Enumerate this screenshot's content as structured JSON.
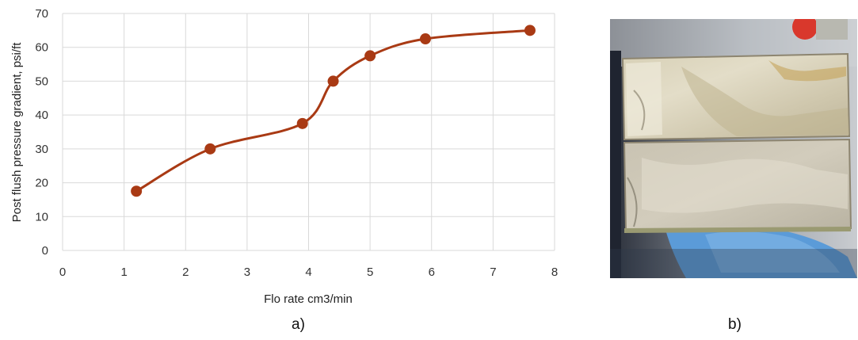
{
  "chart_data": {
    "type": "line",
    "xlabel": "Flo rate cm3/min",
    "ylabel": "Post flush pressure gradient, psi/ft",
    "xlim": [
      0,
      8
    ],
    "ylim": [
      0,
      70
    ],
    "x_ticks": [
      "0",
      "1",
      "2",
      "3",
      "4",
      "5",
      "6",
      "7",
      "8"
    ],
    "y_ticks": [
      "0",
      "10",
      "20",
      "30",
      "40",
      "50",
      "60",
      "70"
    ],
    "grid": true,
    "smoothed": true,
    "series": [
      {
        "color": "#a93a14",
        "points": [
          {
            "x": 1.2,
            "y": 17.5
          },
          {
            "x": 2.4,
            "y": 30
          },
          {
            "x": 3.9,
            "y": 37.5
          },
          {
            "x": 4.4,
            "y": 50
          },
          {
            "x": 5.0,
            "y": 57.5
          },
          {
            "x": 5.9,
            "y": 62.5
          },
          {
            "x": 7.6,
            "y": 65
          }
        ]
      }
    ]
  },
  "captions": {
    "a": "a)",
    "b": "b)"
  },
  "photo": {
    "subject": "two halves of a split rock core sample held by a hand in a blue glove"
  }
}
